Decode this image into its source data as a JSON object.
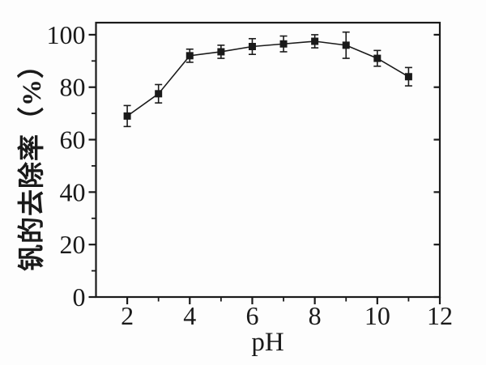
{
  "figure": {
    "background": "#fdfdfd",
    "ink_color": "#1a1a1a"
  },
  "chart_data": {
    "type": "line",
    "title": "",
    "xlabel": "pH",
    "ylabel": "钒的去除率（%）",
    "x": [
      2,
      3,
      4,
      5,
      6,
      7,
      8,
      9,
      10,
      11
    ],
    "series": [
      {
        "name": "钒的去除率",
        "values": [
          69,
          77.5,
          92,
          93.5,
          95.5,
          96.5,
          97.5,
          96,
          91,
          84
        ],
        "errors": [
          4,
          3.5,
          2.5,
          2.5,
          3,
          3,
          2.5,
          5,
          3,
          3.5
        ],
        "marker": "filled-square",
        "color": "#1a1a1a"
      }
    ],
    "xlim": [
      1,
      12
    ],
    "ylim": [
      0,
      104.6
    ],
    "xticks": [
      2,
      4,
      6,
      8,
      10,
      12
    ],
    "xticks_minor": [
      3,
      5,
      7,
      9,
      11
    ],
    "yticks": [
      0,
      20,
      40,
      60,
      80,
      100
    ],
    "yticks_minor": [
      10,
      30,
      50,
      70,
      90
    ],
    "grid": false,
    "legend": "none",
    "frame": "box",
    "error_caps": true
  }
}
